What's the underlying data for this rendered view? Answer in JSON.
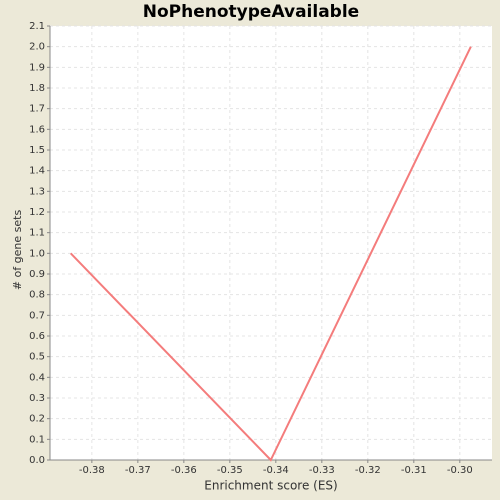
{
  "chart_data": {
    "type": "line",
    "title": "NoPhenotypeAvailable",
    "x_label": "Enrichment score (ES)",
    "y_label": "# of gene sets",
    "x": [
      -0.3846,
      -0.3411,
      -0.2976
    ],
    "series": [
      {
        "name": "NoPhenotypeAvailable",
        "color": "#f47c7c",
        "values": [
          1.0,
          0.0,
          2.0
        ]
      }
    ],
    "xlim": [
      -0.3891,
      -0.293
    ],
    "xticks": [
      -0.38,
      -0.37,
      -0.36,
      -0.35,
      -0.34,
      -0.33,
      -0.32,
      -0.31,
      {
        "value": -0.3,
        "label": "-0.30"
      }
    ],
    "ylim": [
      0,
      2.1
    ],
    "yticks": [
      {
        "value": 0,
        "label": "0.0"
      },
      0.1,
      0.2,
      0.3,
      0.4,
      0.5,
      0.6,
      0.7,
      0.8,
      0.9,
      {
        "value": 1,
        "label": "1.0"
      },
      1.1,
      1.2,
      1.3,
      1.4,
      1.5,
      1.6,
      1.7,
      1.8,
      1.9,
      {
        "value": 2,
        "label": "2.0"
      },
      2.1
    ],
    "grid": true
  }
}
